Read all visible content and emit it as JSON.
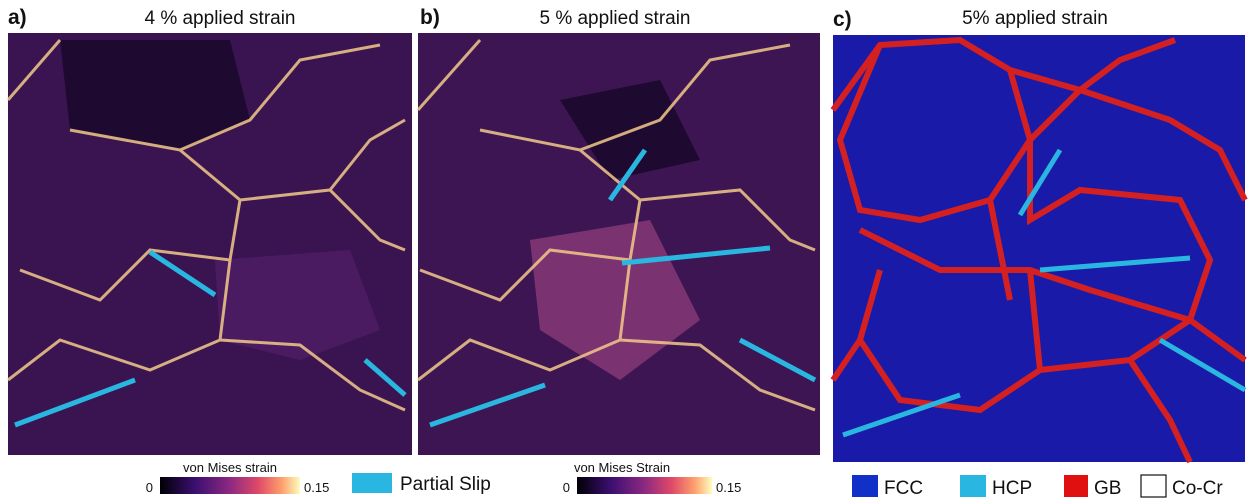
{
  "panels": [
    {
      "label": "a)",
      "title": "4 % applied strain"
    },
    {
      "label": "b)",
      "title": "5 % applied strain"
    },
    {
      "label": "c)",
      "title": "5% applied strain"
    }
  ],
  "colorbars": [
    {
      "label": "von Mises strain",
      "min": 0,
      "max": 0.15
    },
    {
      "label": "von Mises Strain",
      "min": 0,
      "max": 0.15
    }
  ],
  "slip_legend": {
    "label": "Partial Slip"
  },
  "structure_legend": [
    "FCC",
    "HCP",
    "GB",
    "Co-Cr"
  ]
}
